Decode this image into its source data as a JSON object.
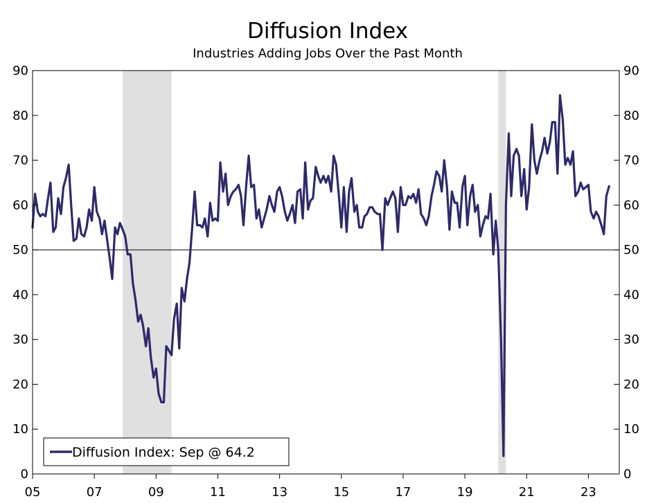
{
  "chart_data": {
    "type": "line",
    "title": "Diffusion Index",
    "subtitle": "Industries Adding Jobs Over the Past Month",
    "xlabel": "",
    "ylabel": "",
    "ylim": [
      0,
      90
    ],
    "xlim": [
      2005.0,
      2024.0
    ],
    "y_ticks": [
      0,
      10,
      20,
      30,
      40,
      50,
      60,
      70,
      80,
      90
    ],
    "y_tick_labels": [
      "0",
      "10",
      "20",
      "30",
      "40",
      "50",
      "60",
      "70",
      "80",
      "90"
    ],
    "x_ticks": [
      2005,
      2007,
      2009,
      2011,
      2013,
      2015,
      2017,
      2019,
      2021,
      2023
    ],
    "x_tick_labels": [
      "05",
      "07",
      "09",
      "11",
      "13",
      "15",
      "17",
      "19",
      "21",
      "23"
    ],
    "reference_line": 50,
    "recessions": [
      [
        2007.92,
        2009.5
      ],
      [
        2020.08,
        2020.33
      ]
    ],
    "legend": {
      "label": "Diffusion Index: Sep @ 64.2",
      "placement": "bottom-left"
    },
    "series": [
      {
        "name": "Diffusion Index",
        "color": "#2e2a6a",
        "points": [
          [
            2005.0,
            55
          ],
          [
            2005.08,
            62.5
          ],
          [
            2005.17,
            58.5
          ],
          [
            2005.25,
            57.5
          ],
          [
            2005.33,
            58
          ],
          [
            2005.42,
            57.5
          ],
          [
            2005.5,
            61.5
          ],
          [
            2005.58,
            65
          ],
          [
            2005.67,
            54
          ],
          [
            2005.75,
            55
          ],
          [
            2005.83,
            61.5
          ],
          [
            2005.92,
            58
          ],
          [
            2006.0,
            64
          ],
          [
            2006.08,
            66
          ],
          [
            2006.17,
            69
          ],
          [
            2006.25,
            60
          ],
          [
            2006.33,
            52
          ],
          [
            2006.42,
            52.5
          ],
          [
            2006.5,
            57
          ],
          [
            2006.58,
            53.5
          ],
          [
            2006.67,
            53
          ],
          [
            2006.75,
            55
          ],
          [
            2006.83,
            59
          ],
          [
            2006.92,
            56.5
          ],
          [
            2007.0,
            64
          ],
          [
            2007.08,
            58.5
          ],
          [
            2007.17,
            57
          ],
          [
            2007.25,
            53.5
          ],
          [
            2007.33,
            56.5
          ],
          [
            2007.42,
            52
          ],
          [
            2007.5,
            48
          ],
          [
            2007.58,
            43.5
          ],
          [
            2007.67,
            55
          ],
          [
            2007.75,
            53.5
          ],
          [
            2007.83,
            56
          ],
          [
            2007.92,
            54.5
          ],
          [
            2008.0,
            53
          ],
          [
            2008.08,
            49
          ],
          [
            2008.17,
            49
          ],
          [
            2008.25,
            42.5
          ],
          [
            2008.33,
            39
          ],
          [
            2008.42,
            34
          ],
          [
            2008.5,
            35.5
          ],
          [
            2008.58,
            33
          ],
          [
            2008.67,
            28.5
          ],
          [
            2008.75,
            32.5
          ],
          [
            2008.83,
            26
          ],
          [
            2008.92,
            21.5
          ],
          [
            2009.0,
            23.5
          ],
          [
            2009.08,
            18
          ],
          [
            2009.17,
            16
          ],
          [
            2009.25,
            16
          ],
          [
            2009.33,
            28.5
          ],
          [
            2009.42,
            27.5
          ],
          [
            2009.5,
            26.5
          ],
          [
            2009.58,
            34.5
          ],
          [
            2009.67,
            38
          ],
          [
            2009.75,
            28
          ],
          [
            2009.83,
            41.5
          ],
          [
            2009.92,
            38.5
          ],
          [
            2010.0,
            43.5
          ],
          [
            2010.08,
            47
          ],
          [
            2010.17,
            55
          ],
          [
            2010.25,
            63
          ],
          [
            2010.33,
            55.5
          ],
          [
            2010.42,
            55.5
          ],
          [
            2010.5,
            55
          ],
          [
            2010.58,
            57
          ],
          [
            2010.67,
            53
          ],
          [
            2010.75,
            60.5
          ],
          [
            2010.83,
            56.5
          ],
          [
            2010.92,
            57
          ],
          [
            2011.0,
            56.5
          ],
          [
            2011.08,
            69.5
          ],
          [
            2011.17,
            63
          ],
          [
            2011.25,
            67
          ],
          [
            2011.33,
            60
          ],
          [
            2011.42,
            62
          ],
          [
            2011.5,
            63
          ],
          [
            2011.58,
            63.5
          ],
          [
            2011.67,
            64.5
          ],
          [
            2011.75,
            62
          ],
          [
            2011.83,
            55.5
          ],
          [
            2011.92,
            64.5
          ],
          [
            2012.0,
            71
          ],
          [
            2012.08,
            64
          ],
          [
            2012.17,
            64.5
          ],
          [
            2012.25,
            57
          ],
          [
            2012.33,
            59
          ],
          [
            2012.42,
            55
          ],
          [
            2012.5,
            57
          ],
          [
            2012.58,
            59
          ],
          [
            2012.67,
            62
          ],
          [
            2012.75,
            60
          ],
          [
            2012.83,
            58.5
          ],
          [
            2012.92,
            63
          ],
          [
            2013.0,
            64
          ],
          [
            2013.08,
            62
          ],
          [
            2013.17,
            58.5
          ],
          [
            2013.25,
            56.5
          ],
          [
            2013.33,
            58
          ],
          [
            2013.42,
            60
          ],
          [
            2013.5,
            56
          ],
          [
            2013.58,
            63
          ],
          [
            2013.67,
            63.5
          ],
          [
            2013.75,
            57
          ],
          [
            2013.83,
            69.5
          ],
          [
            2013.92,
            59
          ],
          [
            2014.0,
            61
          ],
          [
            2014.08,
            61.5
          ],
          [
            2014.17,
            68.5
          ],
          [
            2014.25,
            66.5
          ],
          [
            2014.33,
            65
          ],
          [
            2014.42,
            66.5
          ],
          [
            2014.5,
            65
          ],
          [
            2014.58,
            66.5
          ],
          [
            2014.67,
            63
          ],
          [
            2014.75,
            71
          ],
          [
            2014.83,
            69
          ],
          [
            2014.92,
            62
          ],
          [
            2015.0,
            55
          ],
          [
            2015.08,
            64
          ],
          [
            2015.17,
            54
          ],
          [
            2015.25,
            63
          ],
          [
            2015.33,
            66
          ],
          [
            2015.42,
            58.5
          ],
          [
            2015.5,
            60
          ],
          [
            2015.58,
            55
          ],
          [
            2015.67,
            55
          ],
          [
            2015.75,
            57.5
          ],
          [
            2015.83,
            58
          ],
          [
            2015.92,
            59.5
          ],
          [
            2016.0,
            59.5
          ],
          [
            2016.08,
            58.5
          ],
          [
            2016.17,
            58
          ],
          [
            2016.25,
            58
          ],
          [
            2016.33,
            50
          ],
          [
            2016.42,
            61.5
          ],
          [
            2016.5,
            60
          ],
          [
            2016.58,
            61.5
          ],
          [
            2016.67,
            63
          ],
          [
            2016.75,
            61.5
          ],
          [
            2016.83,
            54
          ],
          [
            2016.92,
            64
          ],
          [
            2017.0,
            60
          ],
          [
            2017.08,
            60
          ],
          [
            2017.17,
            62
          ],
          [
            2017.25,
            61.5
          ],
          [
            2017.33,
            62.5
          ],
          [
            2017.42,
            60.5
          ],
          [
            2017.5,
            63.5
          ],
          [
            2017.58,
            58
          ],
          [
            2017.67,
            57
          ],
          [
            2017.75,
            55.5
          ],
          [
            2017.83,
            57.5
          ],
          [
            2017.92,
            62
          ],
          [
            2018.0,
            64.5
          ],
          [
            2018.08,
            67.5
          ],
          [
            2018.17,
            66.5
          ],
          [
            2018.25,
            63
          ],
          [
            2018.33,
            70
          ],
          [
            2018.42,
            64
          ],
          [
            2018.5,
            54.5
          ],
          [
            2018.58,
            63
          ],
          [
            2018.67,
            60.5
          ],
          [
            2018.75,
            60.5
          ],
          [
            2018.83,
            55
          ],
          [
            2018.92,
            64
          ],
          [
            2019.0,
            66.5
          ],
          [
            2019.08,
            55.5
          ],
          [
            2019.17,
            62
          ],
          [
            2019.25,
            64.5
          ],
          [
            2019.33,
            58.5
          ],
          [
            2019.42,
            60
          ],
          [
            2019.5,
            53
          ],
          [
            2019.58,
            55.5
          ],
          [
            2019.67,
            57.5
          ],
          [
            2019.75,
            57
          ],
          [
            2019.83,
            62.5
          ],
          [
            2019.92,
            49
          ],
          [
            2020.0,
            56.5
          ],
          [
            2020.08,
            50
          ],
          [
            2020.17,
            30
          ],
          [
            2020.25,
            4
          ],
          [
            2020.33,
            60
          ],
          [
            2020.42,
            76
          ],
          [
            2020.5,
            62
          ],
          [
            2020.58,
            71
          ],
          [
            2020.67,
            72.5
          ],
          [
            2020.75,
            71
          ],
          [
            2020.83,
            62
          ],
          [
            2020.92,
            68
          ],
          [
            2021.0,
            59
          ],
          [
            2021.08,
            64
          ],
          [
            2021.17,
            78
          ],
          [
            2021.25,
            70
          ],
          [
            2021.33,
            67
          ],
          [
            2021.42,
            70
          ],
          [
            2021.5,
            72
          ],
          [
            2021.58,
            75
          ],
          [
            2021.67,
            71.5
          ],
          [
            2021.75,
            74
          ],
          [
            2021.83,
            78.5
          ],
          [
            2021.92,
            78.5
          ],
          [
            2022.0,
            67
          ],
          [
            2022.08,
            84.5
          ],
          [
            2022.17,
            79
          ],
          [
            2022.25,
            69
          ],
          [
            2022.33,
            70.5
          ],
          [
            2022.42,
            69
          ],
          [
            2022.5,
            72
          ],
          [
            2022.58,
            62
          ],
          [
            2022.67,
            63
          ],
          [
            2022.75,
            65
          ],
          [
            2022.83,
            63.5
          ],
          [
            2022.92,
            64
          ],
          [
            2023.0,
            64.5
          ],
          [
            2023.08,
            58.5
          ],
          [
            2023.17,
            57
          ],
          [
            2023.25,
            58.5
          ],
          [
            2023.33,
            57.5
          ],
          [
            2023.42,
            55.5
          ],
          [
            2023.5,
            53.5
          ],
          [
            2023.58,
            62
          ],
          [
            2023.67,
            64.2
          ]
        ]
      }
    ]
  }
}
